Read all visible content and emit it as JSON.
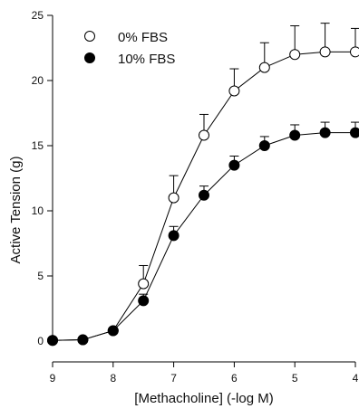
{
  "chart_data": {
    "type": "line",
    "xlabel": "[Methacholine] (-log M)",
    "ylabel": "Active Tension (g)",
    "xlim": [
      9,
      4
    ],
    "ylim": [
      0,
      25
    ],
    "x_ticks": [
      9,
      8,
      7,
      6,
      5,
      4
    ],
    "y_ticks": [
      0,
      5,
      10,
      15,
      20,
      25
    ],
    "x_tick_labels": [
      "9",
      "8",
      "7",
      "6",
      "5",
      "4"
    ],
    "y_tick_labels": [
      "0",
      "5",
      "10",
      "15",
      "20",
      "25"
    ],
    "grid": false,
    "legend_position": "top-left",
    "error_bars": "upper",
    "x": [
      9,
      8.5,
      8,
      7.5,
      7,
      6.5,
      6,
      5.5,
      5,
      4.5,
      4
    ],
    "series": [
      {
        "name": "0% FBS",
        "marker": "open-circle",
        "color": "#000000",
        "values": [
          0.05,
          0.1,
          0.8,
          4.4,
          11.0,
          15.8,
          19.2,
          21.0,
          22.0,
          22.2,
          22.2
        ],
        "error": [
          0,
          0,
          0,
          1.4,
          1.7,
          1.6,
          1.7,
          1.9,
          2.2,
          2.2,
          1.8
        ]
      },
      {
        "name": "10% FBS",
        "marker": "filled-circle",
        "color": "#000000",
        "values": [
          0.05,
          0.1,
          0.8,
          3.1,
          8.1,
          11.2,
          13.5,
          15.0,
          15.8,
          16.0,
          16.0
        ],
        "error": [
          0,
          0,
          0,
          0.5,
          0.7,
          0.7,
          0.7,
          0.7,
          0.8,
          0.8,
          0.8
        ]
      }
    ]
  }
}
